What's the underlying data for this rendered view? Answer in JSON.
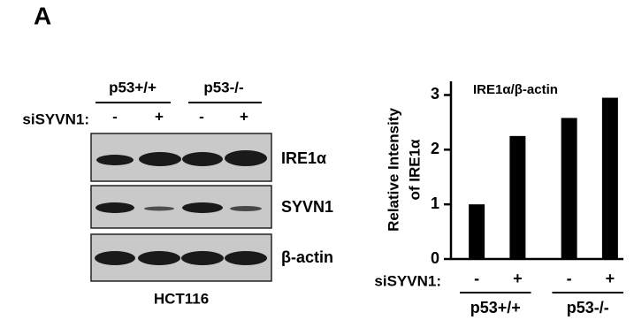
{
  "panel_label": "A",
  "blot": {
    "groups": [
      "p53+/+",
      "p53-/-"
    ],
    "row_label": "siSYVN1:",
    "lanes": [
      "-",
      "+",
      "-",
      "+"
    ],
    "bands": [
      "IRE1α",
      "SYVN1",
      "β-actin"
    ],
    "cell_line": "HCT116"
  },
  "chart_data": {
    "type": "bar",
    "annotation": "IRE1α/β-actin",
    "ylabel": [
      "Relative Intensity",
      "of IRE1α"
    ],
    "categories": [
      "-",
      "+",
      "-",
      "+"
    ],
    "x_row_label": "siSYVN1:",
    "groups": [
      "p53+/+",
      "p53-/-"
    ],
    "values": [
      1.0,
      2.25,
      2.58,
      2.95
    ],
    "color": "#000000",
    "ylim": [
      0,
      3.25
    ],
    "yticks": [
      0,
      1,
      2,
      3
    ]
  }
}
